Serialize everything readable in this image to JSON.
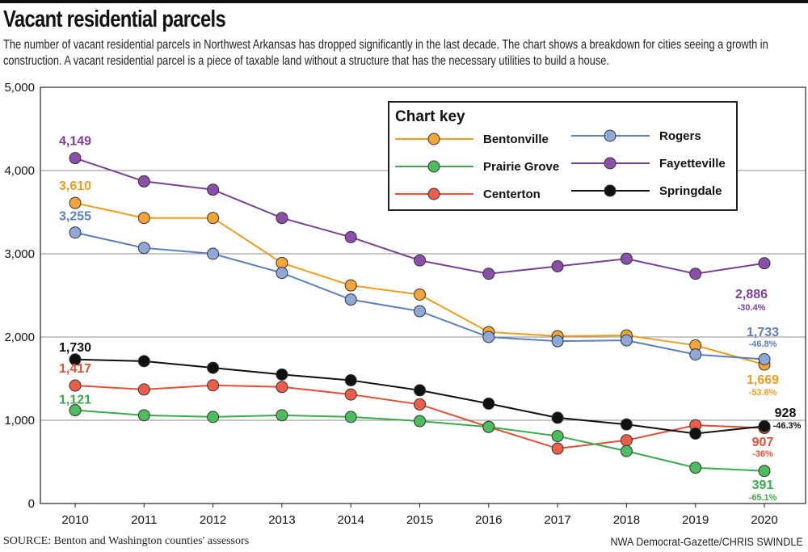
{
  "header": {
    "title": "Vacant residential parcels",
    "subtitle": "The number of vacant residential parcels in Northwest Arkansas has dropped significantly in the last decade. The chart shows a breakdown for cities seeing a growth in construction. A vacant residential parcel is a piece of taxable land without a structure that has the necessary utilities to build a house."
  },
  "footer": {
    "source": "SOURCE: Benton and Washington counties' assessors",
    "credit": "NWA Democrat-Gazette/CHRIS SWINDLE"
  },
  "chart_data": {
    "type": "line",
    "title": "Vacant residential parcels",
    "xlabel": "",
    "ylabel": "",
    "ylim": [
      0,
      5000
    ],
    "yticks": [
      0,
      1000,
      2000,
      3000,
      4000,
      5000
    ],
    "ytick_labels": [
      "0",
      "1,000",
      "2,000",
      "3,000",
      "4,000",
      "5,000"
    ],
    "grid": true,
    "legend": {
      "title": "Chart key",
      "placement": "top-right",
      "order": [
        0,
        3,
        1,
        4,
        2,
        5
      ]
    },
    "x": [
      "2010",
      "2011",
      "2012",
      "2013",
      "2014",
      "2015",
      "2016",
      "2017",
      "2018",
      "2019",
      "2020"
    ],
    "series": [
      {
        "name": "Bentonville",
        "color": "#f29b1c",
        "fill": "#f5a535",
        "values": [
          3610,
          3430,
          3430,
          2890,
          2620,
          2510,
          2060,
          2010,
          2020,
          1900,
          1669
        ],
        "start_label": "3,610",
        "end_label": "1,669",
        "end_pct": "-53.8%"
      },
      {
        "name": "Centerton",
        "color": "#e35036",
        "fill": "#ec5e48",
        "values": [
          1417,
          1370,
          1420,
          1400,
          1310,
          1190,
          920,
          660,
          760,
          940,
          907
        ],
        "start_label": "1,417",
        "end_label": "907",
        "end_pct": "-36%"
      },
      {
        "name": "Fayetteville",
        "color": "#7b3f98",
        "fill": "#8a4fa8",
        "values": [
          4149,
          3870,
          3770,
          3430,
          3200,
          2920,
          2760,
          2850,
          2940,
          2760,
          2886
        ],
        "start_label": "4,149",
        "end_label": "2,886",
        "end_pct": "-30.4%"
      },
      {
        "name": "Prairie Grove",
        "color": "#3aaa4a",
        "fill": "#4cbc5c",
        "values": [
          1121,
          1060,
          1040,
          1060,
          1040,
          990,
          920,
          810,
          630,
          430,
          391
        ],
        "start_label": "1,121",
        "end_label": "391",
        "end_pct": "-65.1%"
      },
      {
        "name": "Rogers",
        "color": "#5a7fbf",
        "fill": "#8fa8d8",
        "values": [
          3255,
          3070,
          3000,
          2770,
          2450,
          2310,
          2000,
          1950,
          1960,
          1790,
          1733
        ],
        "start_label": "3,255",
        "end_label": "1,733",
        "end_pct": "-46.8%"
      },
      {
        "name": "Springdale",
        "color": "#111111",
        "fill": "#111111",
        "values": [
          1730,
          1710,
          1630,
          1550,
          1480,
          1360,
          1200,
          1030,
          950,
          840,
          928
        ],
        "start_label": "1,730",
        "end_label": "928",
        "end_pct": "-46.3%"
      }
    ]
  }
}
